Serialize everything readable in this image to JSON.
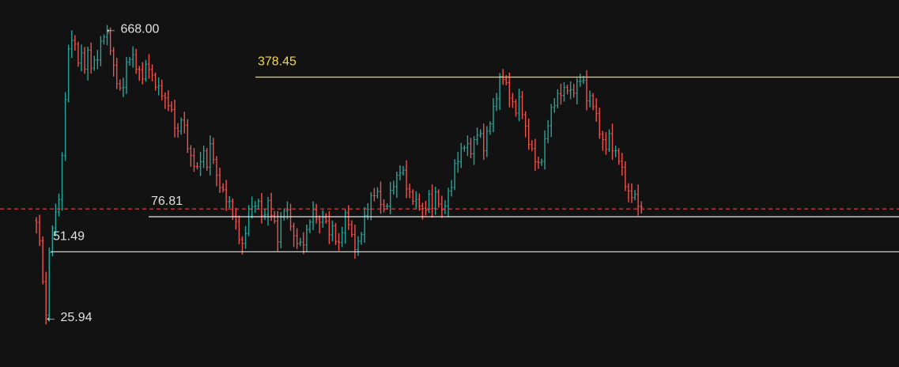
{
  "chart_data": {
    "type": "candlestick",
    "title": "",
    "xlabel": "",
    "ylabel": "",
    "scale": "log",
    "grid": false,
    "colors": {
      "background": "#121212",
      "up": "#26a69a",
      "down": "#ef5350",
      "resistance_line": "#f5d742",
      "support_line": "#e8e8e8",
      "current_price_line": "#e0393e",
      "label_text": "#e0e0e0",
      "resistance_label_text": "#f5d742"
    },
    "price_markers": {
      "high_label": "← 668.00",
      "low_label": "← 25.94",
      "high": 668.0,
      "low": 25.94
    },
    "levels": [
      {
        "label": "378.45",
        "value": 378.45,
        "role": "resistance"
      },
      {
        "label": "76.81",
        "value": 76.81,
        "role": "support"
      },
      {
        "label": "51.49",
        "value": 51.49,
        "role": "support"
      }
    ],
    "current_price": 84.0,
    "close_path": [
      70,
      60,
      35,
      26,
      50,
      70,
      78,
      95,
      150,
      300,
      500,
      600,
      540,
      460,
      480,
      420,
      500,
      430,
      440,
      480,
      560,
      620,
      600,
      520,
      420,
      360,
      320,
      350,
      440,
      480,
      470,
      420,
      400,
      380,
      420,
      430,
      380,
      350,
      330,
      310,
      290,
      280,
      250,
      220,
      200,
      240,
      210,
      170,
      150,
      140,
      130,
      150,
      160,
      140,
      170,
      150,
      120,
      110,
      100,
      95,
      90,
      80,
      70,
      60,
      55,
      65,
      80,
      90,
      85,
      95,
      75,
      80,
      90,
      80,
      70,
      60,
      75,
      85,
      80,
      70,
      60,
      58,
      55,
      58,
      65,
      75,
      80,
      76,
      70,
      78,
      70,
      65,
      68,
      60,
      55,
      65,
      78,
      72,
      60,
      55,
      57,
      65,
      75,
      85,
      95,
      100,
      98,
      92,
      85,
      90,
      100,
      110,
      120,
      130,
      125,
      110,
      100,
      95,
      90,
      88,
      82,
      85,
      95,
      88,
      100,
      92,
      80,
      88,
      100,
      110,
      135,
      150,
      165,
      175,
      170,
      160,
      180,
      200,
      190,
      170,
      200,
      230,
      260,
      300,
      370,
      378,
      340,
      310,
      280,
      260,
      290,
      250,
      210,
      180,
      160,
      150,
      140,
      150,
      180,
      220,
      260,
      280,
      300,
      320,
      330,
      335,
      315,
      320,
      350,
      370,
      350,
      300,
      300,
      280,
      240,
      200,
      180,
      170,
      190,
      170,
      160,
      150,
      130,
      110,
      100,
      98,
      95,
      90,
      84
    ]
  }
}
